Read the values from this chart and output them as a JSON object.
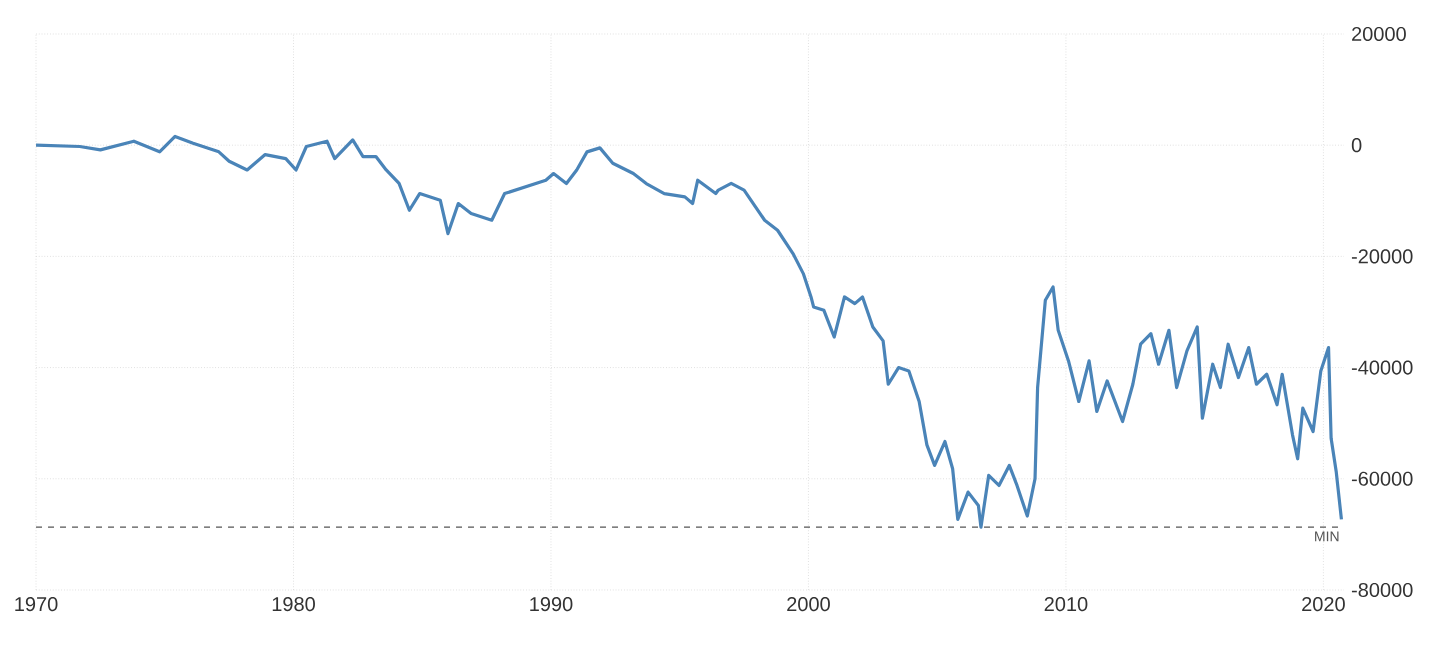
{
  "chart_data": {
    "type": "line",
    "x": [
      1970,
      1971.7,
      1972.5,
      1973.8,
      1974.8,
      1975.4,
      1976.1,
      1977.1,
      1977.5,
      1978.2,
      1978.9,
      1979.7,
      1980.1,
      1980.5,
      1981.3,
      1981.6,
      1982.3,
      1982.7,
      1983.2,
      1983.6,
      1984.1,
      1984.5,
      1984.9,
      1985.7,
      1986.0,
      1986.4,
      1986.9,
      1987.7,
      1988.2,
      1989.0,
      1989.8,
      1990.1,
      1990.6,
      1991.0,
      1991.4,
      1991.9,
      1992.4,
      1993.2,
      1993.7,
      1994.4,
      1995.2,
      1995.5,
      1995.7,
      1996.4,
      1996.5,
      1997.0,
      1997.5,
      1998.3,
      1998.8,
      1999.4,
      1999.8,
      2000.1,
      2000.2,
      2000.6,
      2001.0,
      2001.4,
      2001.8,
      2002.1,
      2002.5,
      2002.9,
      2003.1,
      2003.5,
      2003.9,
      2004.3,
      2004.6,
      2004.9,
      2005.3,
      2005.6,
      2005.8,
      2006.2,
      2006.6,
      2006.7,
      2007.0,
      2007.4,
      2007.8,
      2008.1,
      2008.5,
      2008.8,
      2008.9,
      2009.2,
      2009.5,
      2009.7,
      2010.1,
      2010.5,
      2010.9,
      2011.2,
      2011.6,
      2012.2,
      2012.6,
      2012.9,
      2013.3,
      2013.6,
      2014.0,
      2014.3,
      2014.7,
      2015.1,
      2015.3,
      2015.7,
      2016.0,
      2016.3,
      2016.7,
      2017.1,
      2017.4,
      2017.8,
      2018.2,
      2018.4,
      2018.8,
      2019.0,
      2019.2,
      2019.6,
      2019.9,
      2020.2,
      2020.3,
      2020.5,
      2020.7
    ],
    "series": [
      {
        "color": "#4a84b8",
        "values": [
          0,
          -240,
          -840,
          720,
          -1200,
          1570,
          360,
          -1200,
          -2900,
          -4460,
          -1690,
          -2410,
          -4460,
          -240,
          720,
          -2410,
          960,
          -2050,
          -2050,
          -4460,
          -6870,
          -11700,
          -8700,
          -9900,
          -15900,
          -10500,
          -12300,
          -13500,
          -8700,
          -7500,
          -6300,
          -5100,
          -6900,
          -4460,
          -1200,
          -480,
          -3250,
          -5100,
          -6900,
          -8700,
          -9300,
          -10500,
          -6300,
          -8700,
          -8070,
          -6870,
          -8070,
          -13500,
          -15300,
          -19500,
          -23100,
          -27300,
          -29100,
          -29700,
          -34500,
          -27300,
          -28500,
          -27300,
          -32700,
          -35200,
          -43000,
          -40000,
          -40600,
          -46100,
          -53900,
          -57600,
          -53300,
          -58200,
          -67300,
          -62400,
          -64800,
          -68700,
          -59400,
          -61200,
          -57600,
          -61200,
          -66700,
          -60000,
          -43600,
          -27900,
          -25500,
          -33300,
          -38800,
          -46100,
          -38800,
          -47900,
          -42400,
          -49700,
          -43000,
          -35800,
          -33900,
          -39400,
          -33300,
          -43600,
          -37000,
          -32700,
          -49100,
          -39400,
          -43600,
          -35800,
          -41800,
          -36400,
          -43000,
          -41200,
          -46700,
          -41200,
          -52100,
          -56400,
          -47300,
          -51500,
          -40600,
          -36400,
          -52700,
          -58800,
          -67300
        ]
      }
    ],
    "xlim": [
      1970,
      2020.8
    ],
    "xticks": [
      1970,
      1980,
      1990,
      2000,
      2010,
      2020
    ],
    "ylim": [
      -80000,
      20000
    ],
    "yticks": [
      -80000,
      -60000,
      -40000,
      -20000,
      0,
      20000
    ],
    "grid": true,
    "ref_lines": [
      {
        "axis": "y",
        "value": -68700,
        "label": "MIN",
        "color": "#555555",
        "line_style": "dashed"
      }
    ]
  }
}
